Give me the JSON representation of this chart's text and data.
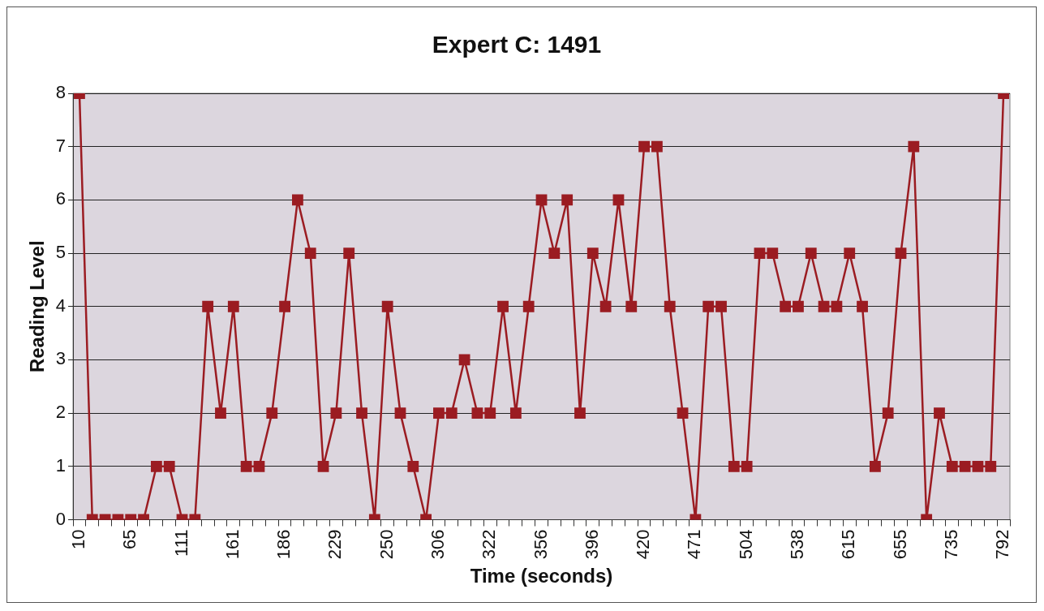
{
  "chart_data": {
    "type": "line",
    "title": "Expert C: 1491",
    "xlabel": "Time (seconds)",
    "ylabel": "Reading Level",
    "categories": [
      "10",
      null,
      null,
      null,
      "65",
      null,
      null,
      null,
      "111",
      null,
      null,
      null,
      "161",
      null,
      null,
      null,
      "186",
      null,
      null,
      null,
      "229",
      null,
      null,
      null,
      "250",
      null,
      null,
      null,
      "306",
      null,
      null,
      null,
      "322",
      null,
      null,
      null,
      "356",
      null,
      null,
      null,
      "396",
      null,
      null,
      null,
      "420",
      null,
      null,
      null,
      "471",
      null,
      null,
      null,
      "504",
      null,
      null,
      null,
      "538",
      null,
      null,
      null,
      "615",
      null,
      null,
      null,
      "655",
      null,
      null,
      null,
      "735",
      null,
      null,
      null,
      "792"
    ],
    "series": [
      {
        "color": "#9b1c22",
        "values": [
          8,
          0,
          0,
          0,
          0,
          0,
          1,
          1,
          0,
          0,
          4,
          2,
          4,
          1,
          1,
          2,
          4,
          6,
          5,
          1,
          2,
          5,
          2,
          0,
          4,
          2,
          1,
          0,
          2,
          2,
          3,
          2,
          2,
          4,
          2,
          4,
          6,
          5,
          6,
          2,
          5,
          4,
          6,
          4,
          7,
          7,
          4,
          2,
          0,
          4,
          4,
          1,
          1,
          5,
          5,
          4,
          4,
          5,
          4,
          4,
          5,
          4,
          1,
          2,
          5,
          7,
          0,
          2,
          1,
          1,
          1,
          1,
          8
        ]
      }
    ],
    "ylim": [
      0,
      8
    ],
    "yticks": [
      0,
      1,
      2,
      3,
      4,
      5,
      6,
      7,
      8
    ],
    "grid": "y",
    "legend": false,
    "marker": "square",
    "line_style": "solid"
  }
}
